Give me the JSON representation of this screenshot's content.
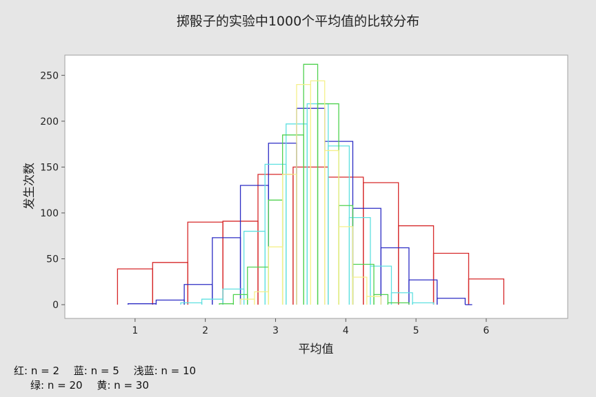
{
  "chart_data": {
    "type": "histogram",
    "title": "掷骰子的实验中1000个平均值的比较分布",
    "xlabel": "平均值",
    "ylabel": "发生次数",
    "xlim": [
      0,
      7.16
    ],
    "ylim": [
      -15,
      272
    ],
    "xticks": [
      1,
      2,
      3,
      4,
      5,
      6
    ],
    "yticks": [
      0,
      50,
      100,
      150,
      200,
      250
    ],
    "grid": false,
    "series": [
      {
        "name": "n = 2",
        "color": "#d62728",
        "edges": [
          0.75,
          1.25,
          1.75,
          2.25,
          2.75,
          3.25,
          3.75,
          4.25,
          4.75,
          5.25,
          5.75,
          6.25
        ],
        "counts": [
          39,
          46,
          90,
          91,
          142,
          150,
          139,
          133,
          86,
          56,
          28
        ]
      },
      {
        "name": "n = 5",
        "color": "#2b2bc4",
        "edges": [
          0.9,
          1.3,
          1.7,
          2.1,
          2.5,
          2.9,
          3.3,
          3.7,
          4.1,
          4.5,
          4.9,
          5.3,
          5.7,
          5.8
        ],
        "counts": [
          1,
          5,
          22,
          73,
          130,
          176,
          214,
          178,
          105,
          62,
          27,
          7,
          0
        ]
      },
      {
        "name": "n = 10",
        "color": "#5ee0e0",
        "edges": [
          1.65,
          1.95,
          2.25,
          2.55,
          2.85,
          3.15,
          3.45,
          3.75,
          4.05,
          4.35,
          4.65,
          4.95,
          5.25
        ],
        "counts": [
          2,
          6,
          17,
          80,
          153,
          197,
          219,
          173,
          95,
          42,
          13,
          2
        ]
      },
      {
        "name": "n = 20",
        "color": "#4fd14f",
        "edges": [
          2.2,
          2.4,
          2.6,
          2.9,
          3.1,
          3.4,
          3.6,
          3.9,
          4.1,
          4.4,
          4.6,
          4.9
        ],
        "counts": [
          1,
          11,
          41,
          114,
          185,
          262,
          219,
          108,
          44,
          11,
          2
        ]
      },
      {
        "name": "n = 30",
        "color": "#f5f08a",
        "edges": [
          2.5,
          2.7,
          2.9,
          3.1,
          3.3,
          3.5,
          3.7,
          3.9,
          4.1,
          4.3,
          4.5
        ],
        "counts": [
          6,
          14,
          63,
          142,
          240,
          244,
          168,
          85,
          30,
          9
        ]
      }
    ]
  },
  "legend": {
    "line1": [
      {
        "color_word": "红",
        "label": "n = 2"
      },
      {
        "color_word": "蓝",
        "label": "n = 5"
      },
      {
        "color_word": "浅蓝",
        "label": "n = 10"
      }
    ],
    "line2": [
      {
        "color_word": "绿",
        "label": "n = 20"
      },
      {
        "color_word": "黄",
        "label": "n = 30"
      }
    ]
  }
}
